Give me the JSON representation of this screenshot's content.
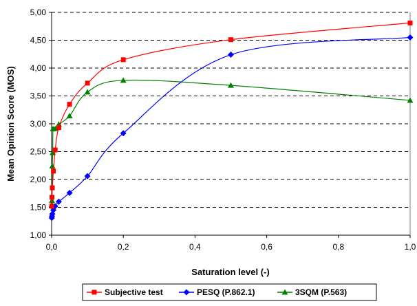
{
  "chart_data": {
    "type": "line",
    "title": "",
    "xlabel": "Saturation level (-)",
    "ylabel": "Mean Opinion Score (MOS)",
    "xlim": [
      0,
      1
    ],
    "ylim": [
      1,
      5
    ],
    "x_ticks": [
      "0,0",
      "0,2",
      "0,4",
      "0,6",
      "0,8",
      "1,0"
    ],
    "y_ticks": [
      "1,00",
      "1,50",
      "2,00",
      "2,50",
      "3,00",
      "3,50",
      "4,00",
      "4,50",
      "5,00"
    ],
    "grid": "horizontal dashed",
    "legend_position": "bottom",
    "series": [
      {
        "name": "Subjective test",
        "color": "#ff0000",
        "marker": "square",
        "points": [
          [
            0.0005,
            1.52
          ],
          [
            0.001,
            1.68
          ],
          [
            0.002,
            1.85
          ],
          [
            0.005,
            2.15
          ],
          [
            0.01,
            2.53
          ],
          [
            0.02,
            2.93
          ],
          [
            0.05,
            3.35
          ],
          [
            0.1,
            3.73
          ],
          [
            0.2,
            4.15
          ],
          [
            0.5,
            4.51
          ],
          [
            1.0,
            4.81
          ]
        ]
      },
      {
        "name": "PESQ (P.862.1)",
        "color": "#0000ff",
        "marker": "diamond",
        "points": [
          [
            0.0005,
            1.31
          ],
          [
            0.001,
            1.34
          ],
          [
            0.002,
            1.38
          ],
          [
            0.005,
            1.45
          ],
          [
            0.01,
            1.52
          ],
          [
            0.02,
            1.6
          ],
          [
            0.05,
            1.76
          ],
          [
            0.1,
            2.06
          ],
          [
            0.2,
            2.83
          ],
          [
            0.5,
            4.24
          ],
          [
            1.0,
            4.55
          ]
        ]
      },
      {
        "name": "3SQM (P.563)",
        "color": "#008000",
        "marker": "triangle",
        "points": [
          [
            0.0005,
            1.55
          ],
          [
            0.001,
            1.62
          ],
          [
            0.002,
            2.24
          ],
          [
            0.003,
            2.48
          ],
          [
            0.004,
            2.91
          ],
          [
            0.01,
            2.91
          ],
          [
            0.02,
            2.99
          ],
          [
            0.05,
            3.14
          ],
          [
            0.1,
            3.57
          ],
          [
            0.2,
            3.78
          ],
          [
            0.5,
            3.69
          ],
          [
            1.0,
            3.42
          ]
        ]
      }
    ]
  }
}
